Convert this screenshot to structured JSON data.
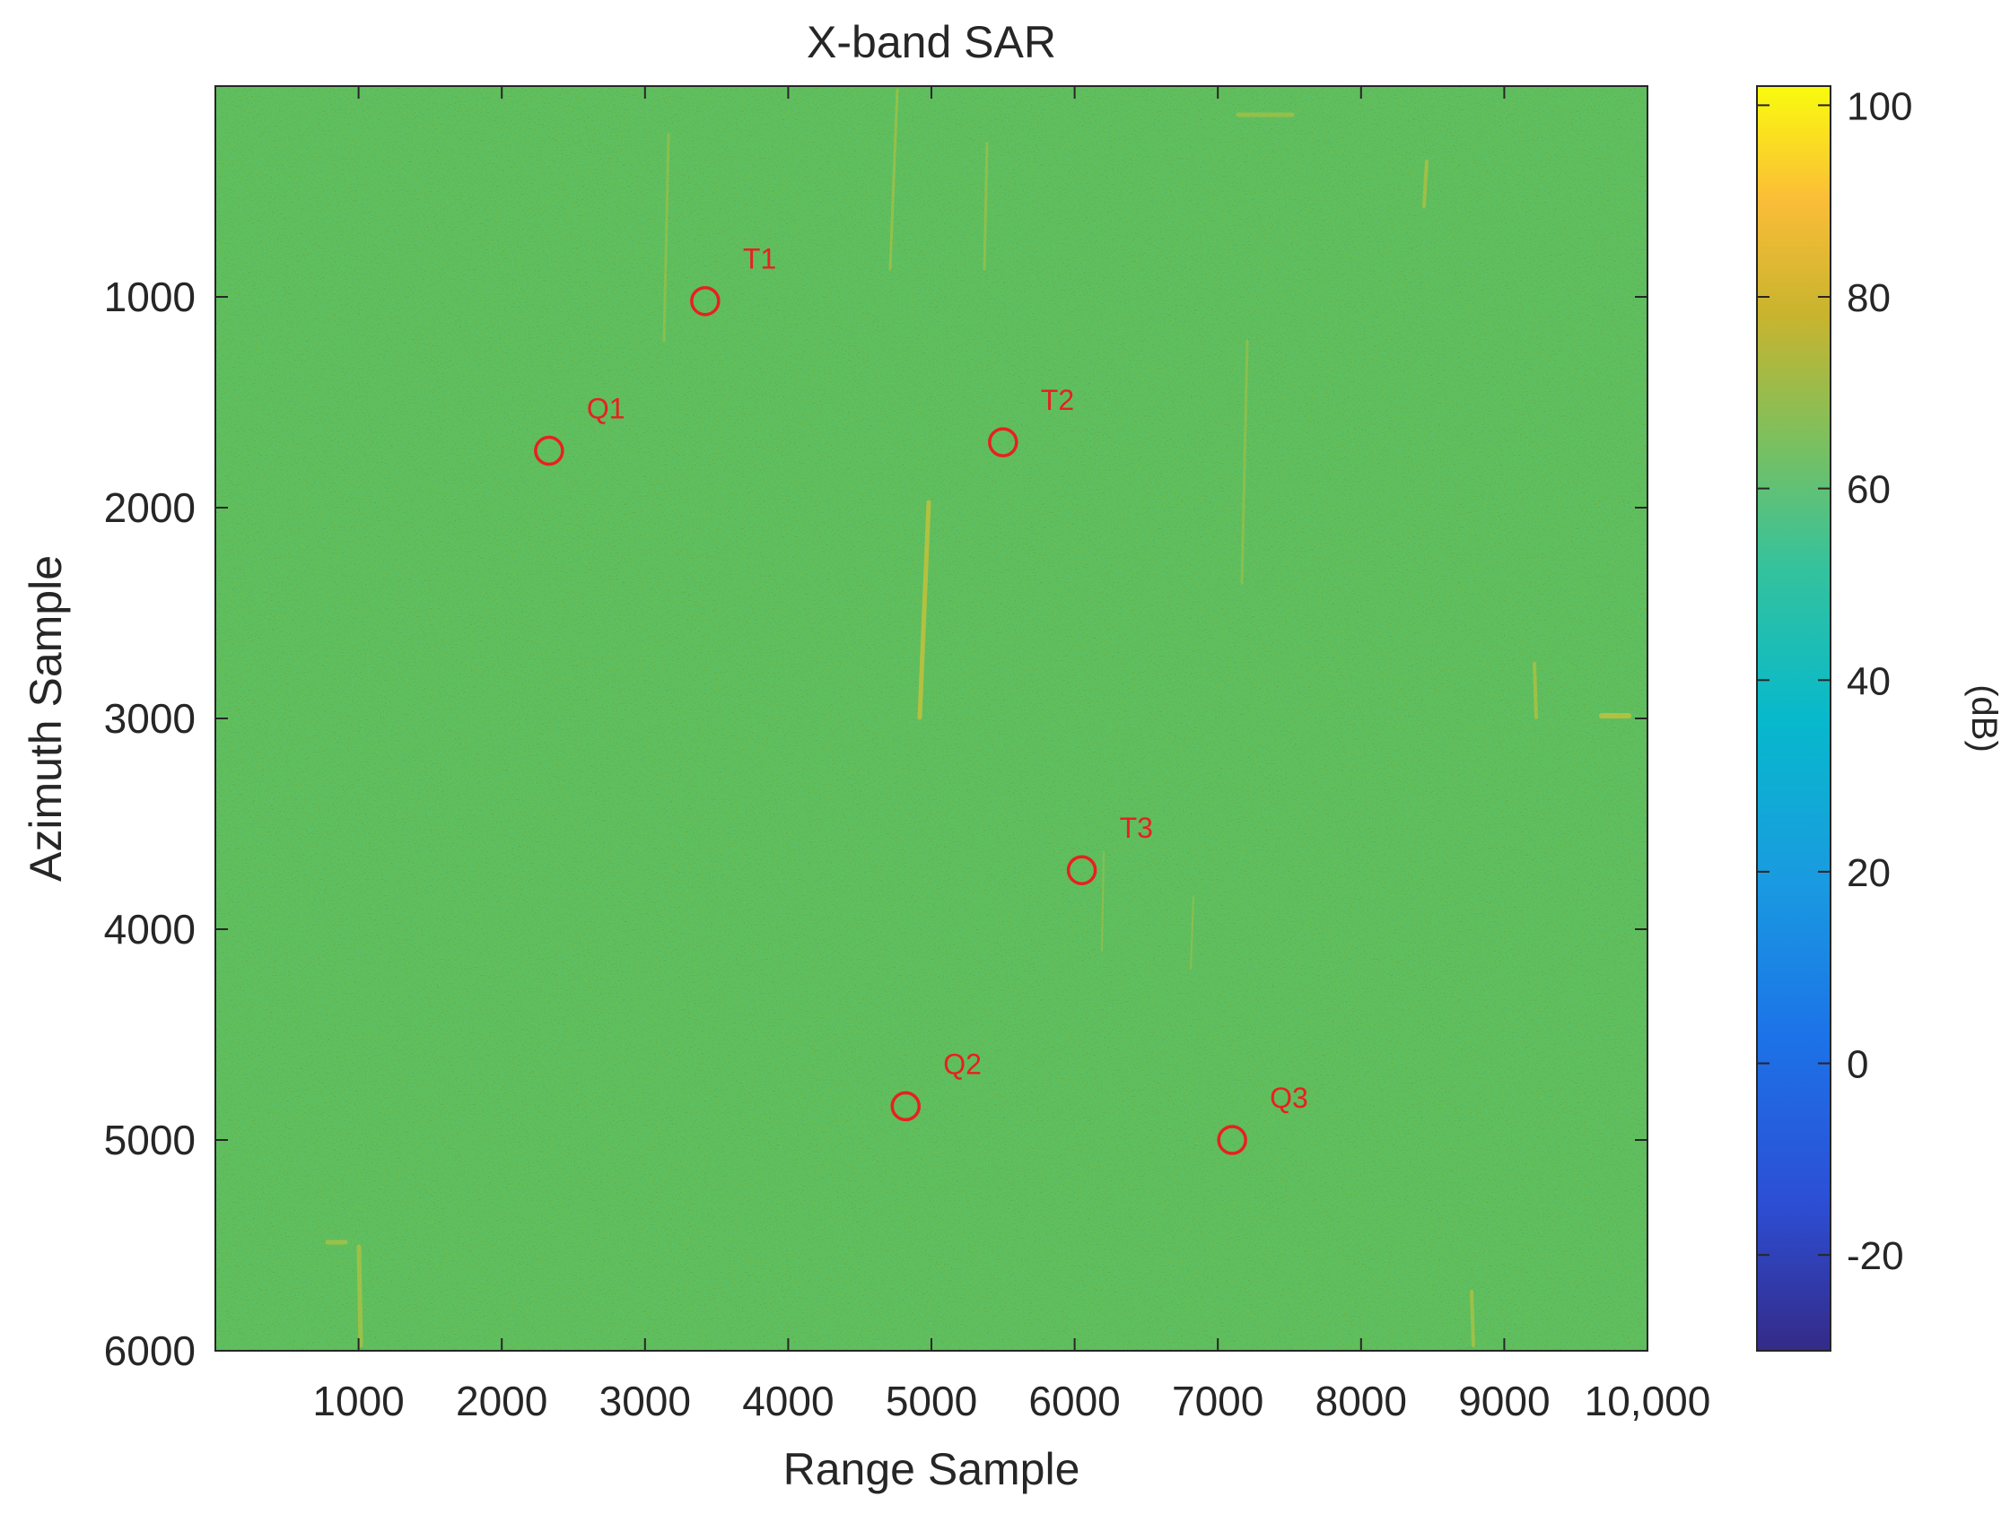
{
  "chart_data": {
    "type": "heatmap",
    "title": "X-band SAR",
    "xlabel": "Range Sample",
    "ylabel": "Azimuth Sample",
    "xlim": [
      0,
      10000
    ],
    "ylim": [
      0,
      6000
    ],
    "y_reversed": true,
    "x_ticks": [
      1000,
      2000,
      3000,
      4000,
      5000,
      6000,
      7000,
      8000,
      9000,
      10000
    ],
    "x_tick_labels": [
      "1000",
      "2000",
      "3000",
      "4000",
      "5000",
      "6000",
      "7000",
      "8000",
      "9000",
      "10,000"
    ],
    "y_ticks": [
      1000,
      2000,
      3000,
      4000,
      5000,
      6000
    ],
    "y_tick_labels": [
      "1000",
      "2000",
      "3000",
      "4000",
      "5000",
      "6000"
    ],
    "colorbar": {
      "label": "(dB)",
      "range": [
        -30,
        102
      ],
      "ticks": [
        -20,
        0,
        20,
        40,
        60,
        80,
        100
      ],
      "tick_labels": [
        "-20",
        "0",
        "20",
        "40",
        "60",
        "80",
        "100"
      ],
      "colormap": "parula"
    },
    "background_level_db": 52,
    "grid": false,
    "markers": [
      {
        "name": "T1",
        "x": 3420,
        "y": 1020
      },
      {
        "name": "Q1",
        "x": 2330,
        "y": 1730
      },
      {
        "name": "T2",
        "x": 5500,
        "y": 1690
      },
      {
        "name": "T3",
        "x": 6050,
        "y": 3720
      },
      {
        "name": "Q2",
        "x": 4820,
        "y": 4840
      },
      {
        "name": "Q3",
        "x": 7100,
        "y": 5000
      }
    ]
  },
  "colors": {
    "marker": "#e8201f",
    "background_field": "#5cc065",
    "axis": "#262626"
  }
}
